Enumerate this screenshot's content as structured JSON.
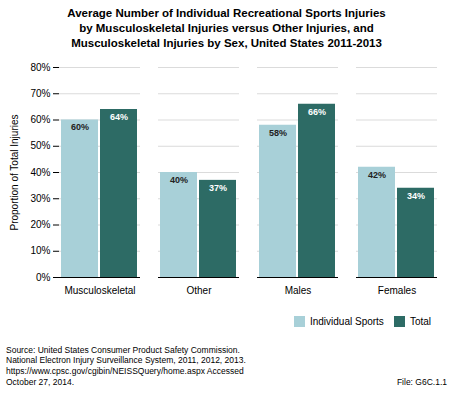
{
  "chart_data": {
    "type": "bar",
    "title": "Average Number of Individual Recreational Sports Injuries\nby Musculoskeletal Injuries versus Other Injuries, and\nMusculoskeletal Injuries by Sex, United States 2011-2013",
    "categories": [
      "Musculoskeletal",
      "Other",
      "Males",
      "Females"
    ],
    "series": [
      {
        "name": "Individual Sports",
        "color": "#a8d0d8",
        "values": [
          60,
          40,
          58,
          42
        ],
        "value_labels": [
          "60%",
          "40%",
          "58%",
          "42%"
        ]
      },
      {
        "name": "Total",
        "color": "#2d6b65",
        "values": [
          64,
          37,
          66,
          34
        ],
        "value_labels": [
          "64%",
          "37%",
          "66%",
          "34%"
        ]
      }
    ],
    "ylabel": "Proportion of Total Injuries",
    "ylim": [
      0,
      80
    ],
    "yticks": [
      {
        "value": 0,
        "label": "0%"
      },
      {
        "value": 10,
        "label": "10%"
      },
      {
        "value": 20,
        "label": "20%"
      },
      {
        "value": 30,
        "label": "30%"
      },
      {
        "value": 40,
        "label": "40%"
      },
      {
        "value": 50,
        "label": "50%"
      },
      {
        "value": 60,
        "label": "60%"
      },
      {
        "value": 70,
        "label": "70%"
      },
      {
        "value": 80,
        "label": "80%"
      }
    ],
    "grid": true,
    "legend": "lower right",
    "data_labels": true,
    "annotations": [
      "Source: United States Consumer Product Safety Commission.\nNational Electron Injury Surveillance System, 2011, 2012, 2013.\nhttps://www.cpsc.gov/cgibin/NEISSQuery/home.aspx  Accessed\nOctober 27, 2014.",
      "File: G6C.1.1"
    ]
  }
}
